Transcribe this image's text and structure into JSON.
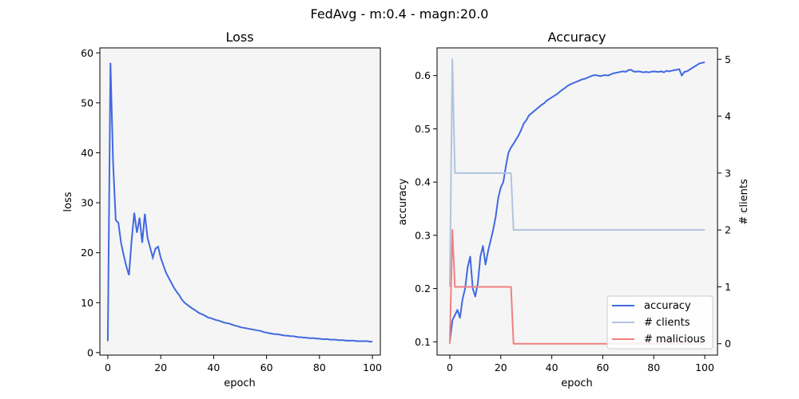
{
  "figure": {
    "suptitle": "FedAvg - m:0.4 - magn:20.0"
  },
  "colors": {
    "accuracy": "#4169e1",
    "clients": "#b0c4de",
    "malicious": "#f08080",
    "panel_bg": "#f5f5f5"
  },
  "chart_data": [
    {
      "type": "line",
      "title": "Loss",
      "xlabel": "epoch",
      "ylabel": "loss",
      "xlim": [
        -3,
        103
      ],
      "ylim": [
        -0.5,
        61
      ],
      "xticks": [
        0,
        20,
        40,
        60,
        80,
        100
      ],
      "yticks": [
        0,
        10,
        20,
        30,
        40,
        50,
        60
      ],
      "grid": false,
      "series": [
        {
          "x": [
            0,
            1,
            2,
            3,
            4,
            5,
            6,
            7,
            8,
            9,
            10,
            11,
            12,
            13,
            14,
            15,
            16,
            17,
            18,
            19,
            20,
            21,
            22,
            23,
            24,
            25,
            26,
            27,
            28,
            29,
            30,
            31,
            32,
            33,
            34,
            35,
            36,
            37,
            38,
            39,
            40,
            41,
            42,
            43,
            44,
            45,
            46,
            47,
            48,
            49,
            50,
            51,
            52,
            53,
            54,
            55,
            56,
            57,
            58,
            59,
            60,
            61,
            62,
            63,
            64,
            65,
            66,
            67,
            68,
            69,
            70,
            71,
            72,
            73,
            74,
            75,
            76,
            77,
            78,
            79,
            80,
            81,
            82,
            83,
            84,
            85,
            86,
            87,
            88,
            89,
            90,
            91,
            92,
            93,
            94,
            95,
            96,
            97,
            98,
            99,
            100
          ],
          "y": [
            2.3,
            58.0,
            38.0,
            26.5,
            26.0,
            22.0,
            19.5,
            17.3,
            15.5,
            22.5,
            28.0,
            24.0,
            27.0,
            22.0,
            27.8,
            23.0,
            21.0,
            19.0,
            20.8,
            21.2,
            19.0,
            17.5,
            16.0,
            15.0,
            14.0,
            13.0,
            12.2,
            11.5,
            10.6,
            10.0,
            9.6,
            9.2,
            8.8,
            8.5,
            8.1,
            7.8,
            7.6,
            7.3,
            7.0,
            6.9,
            6.7,
            6.5,
            6.4,
            6.2,
            6.0,
            5.9,
            5.8,
            5.6,
            5.4,
            5.3,
            5.1,
            5.0,
            4.9,
            4.8,
            4.7,
            4.6,
            4.5,
            4.4,
            4.3,
            4.1,
            4.0,
            3.9,
            3.8,
            3.7,
            3.7,
            3.6,
            3.5,
            3.4,
            3.4,
            3.3,
            3.3,
            3.2,
            3.1,
            3.1,
            3.0,
            3.0,
            2.9,
            2.9,
            2.9,
            2.8,
            2.8,
            2.7,
            2.7,
            2.7,
            2.6,
            2.6,
            2.6,
            2.5,
            2.5,
            2.5,
            2.4,
            2.4,
            2.4,
            2.4,
            2.3,
            2.3,
            2.3,
            2.3,
            2.3,
            2.2,
            2.2
          ]
        }
      ]
    },
    {
      "type": "line",
      "title": "Accuracy",
      "xlabel": "epoch",
      "ylabel": "accuracy",
      "y2label": "# clients",
      "xlim": [
        -5,
        105
      ],
      "ylim": [
        0.075,
        0.652
      ],
      "y2lim": [
        -0.2,
        5.2
      ],
      "xticks": [
        0,
        20,
        40,
        60,
        80,
        100
      ],
      "yticks": [
        0.1,
        0.2,
        0.3,
        0.4,
        0.5,
        0.6
      ],
      "y2ticks": [
        0,
        1,
        2,
        3,
        4,
        5
      ],
      "grid": false,
      "legend": "bottom-right",
      "series": [
        {
          "name": "accuracy",
          "axis": "left",
          "x": [
            0,
            1,
            2,
            3,
            4,
            5,
            6,
            7,
            8,
            9,
            10,
            11,
            12,
            13,
            14,
            15,
            16,
            17,
            18,
            19,
            20,
            21,
            22,
            23,
            24,
            25,
            26,
            27,
            28,
            29,
            30,
            31,
            32,
            33,
            34,
            35,
            36,
            37,
            38,
            39,
            40,
            41,
            42,
            43,
            44,
            45,
            46,
            47,
            48,
            49,
            50,
            51,
            52,
            53,
            54,
            55,
            56,
            57,
            58,
            59,
            60,
            61,
            62,
            63,
            64,
            65,
            66,
            67,
            68,
            69,
            70,
            71,
            72,
            73,
            74,
            75,
            76,
            77,
            78,
            79,
            80,
            81,
            82,
            83,
            84,
            85,
            86,
            87,
            88,
            89,
            90,
            91,
            92,
            93,
            94,
            95,
            96,
            97,
            98,
            99,
            100
          ],
          "y": [
            0.1,
            0.14,
            0.15,
            0.16,
            0.145,
            0.18,
            0.2,
            0.24,
            0.26,
            0.2,
            0.185,
            0.21,
            0.26,
            0.28,
            0.245,
            0.27,
            0.29,
            0.31,
            0.335,
            0.37,
            0.39,
            0.4,
            0.43,
            0.455,
            0.465,
            0.472,
            0.48,
            0.488,
            0.498,
            0.51,
            0.516,
            0.525,
            0.529,
            0.533,
            0.537,
            0.541,
            0.545,
            0.548,
            0.553,
            0.556,
            0.559,
            0.562,
            0.565,
            0.569,
            0.573,
            0.576,
            0.58,
            0.583,
            0.585,
            0.587,
            0.589,
            0.591,
            0.593,
            0.594,
            0.596,
            0.598,
            0.6,
            0.601,
            0.6,
            0.599,
            0.6,
            0.601,
            0.6,
            0.602,
            0.604,
            0.605,
            0.606,
            0.607,
            0.608,
            0.607,
            0.61,
            0.611,
            0.608,
            0.607,
            0.608,
            0.607,
            0.606,
            0.607,
            0.606,
            0.607,
            0.608,
            0.607,
            0.607,
            0.608,
            0.606,
            0.609,
            0.608,
            0.609,
            0.61,
            0.611,
            0.612,
            0.6,
            0.607,
            0.608,
            0.611,
            0.614,
            0.617,
            0.62,
            0.623,
            0.624,
            0.625
          ]
        },
        {
          "name": "# clients",
          "axis": "right",
          "x": [
            0,
            1,
            2,
            3,
            24,
            25,
            100
          ],
          "y": [
            1,
            5,
            3,
            3,
            3,
            2,
            2
          ]
        },
        {
          "name": "# malicious",
          "axis": "right",
          "x": [
            0,
            1,
            2,
            3,
            24,
            25,
            100
          ],
          "y": [
            0,
            2,
            1,
            1,
            1,
            0,
            0
          ]
        }
      ]
    }
  ]
}
